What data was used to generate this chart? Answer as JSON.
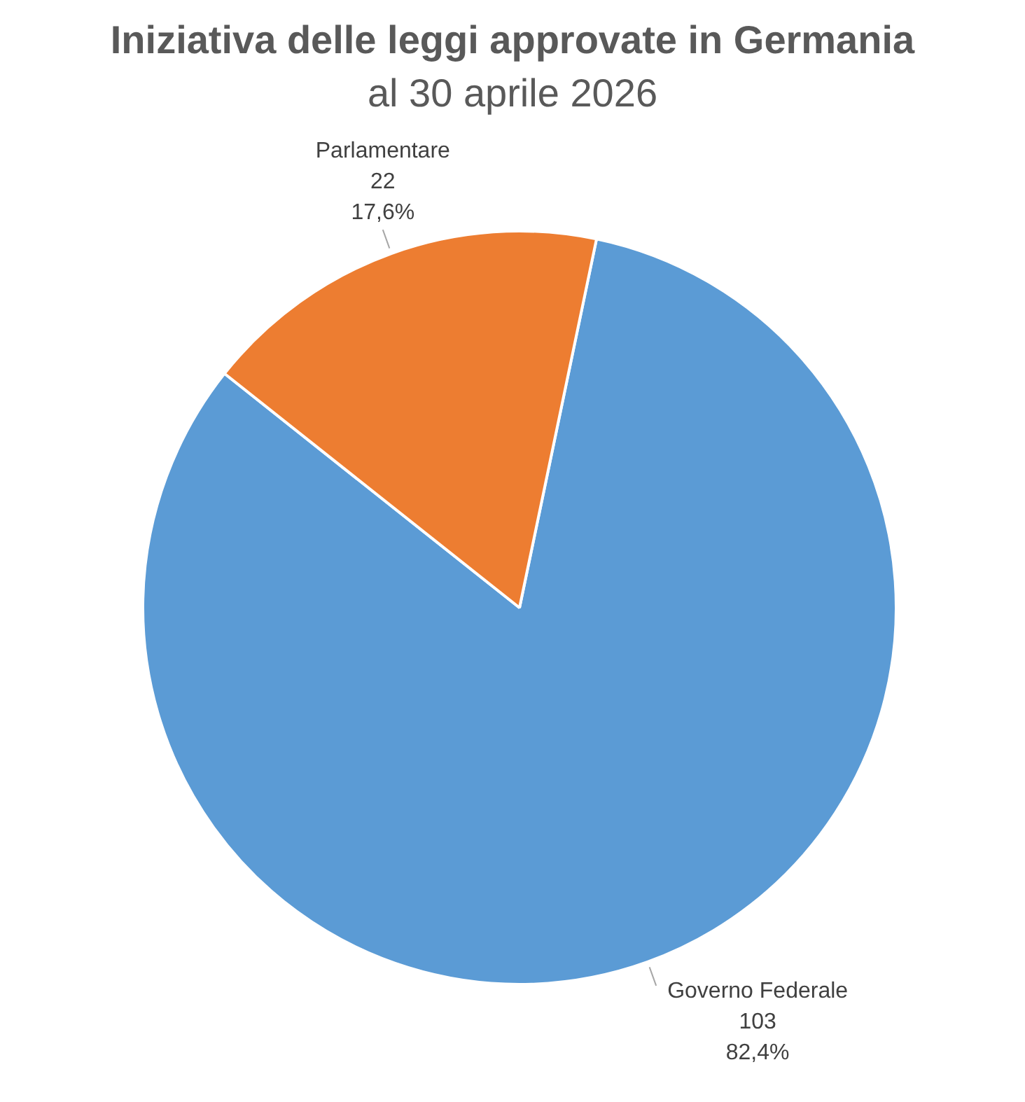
{
  "chart_data": {
    "type": "pie",
    "title": "Iniziativa delle leggi approvate in Germania",
    "subtitle": "al 30 aprile 2026",
    "categories": [
      "Governo Federale",
      "Parlamentare"
    ],
    "values": [
      103,
      22
    ],
    "colors": [
      "#5b9bd5",
      "#ed7d31"
    ],
    "value_labels": [
      "103\n82,4%",
      "22\n17,6%"
    ]
  }
}
